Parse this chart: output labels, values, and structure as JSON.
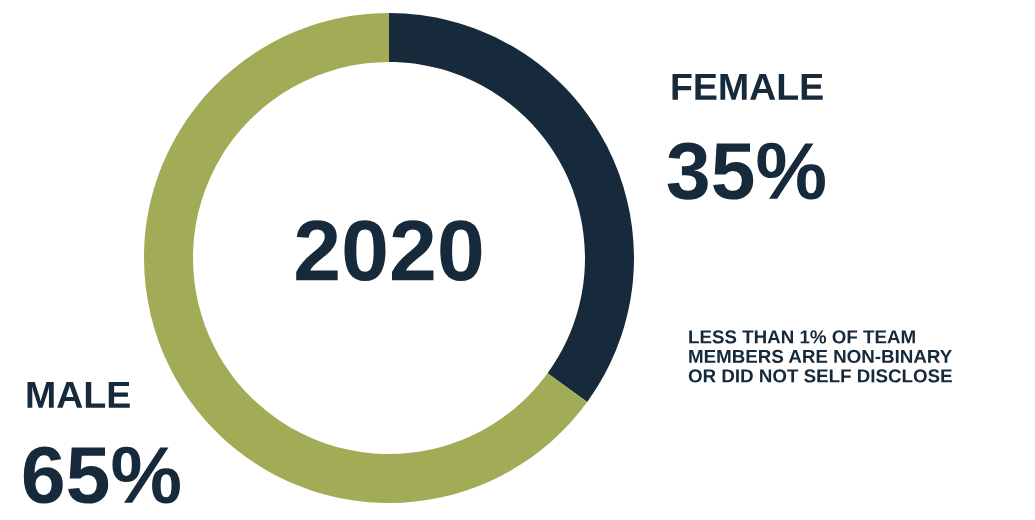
{
  "chart_data": {
    "type": "donut",
    "title": "2020",
    "categories": [
      "FEMALE",
      "MALE"
    ],
    "values": [
      35,
      65
    ],
    "colors": [
      "#162a3c",
      "#a2ab56"
    ],
    "value_labels": [
      "35%",
      "65%"
    ],
    "legend": false,
    "annotations": [
      "LESS THAN 1% OF TEAM\nMEMBERS ARE NON-BINARY\nOR DID NOT SELF DISCLOSE"
    ]
  }
}
